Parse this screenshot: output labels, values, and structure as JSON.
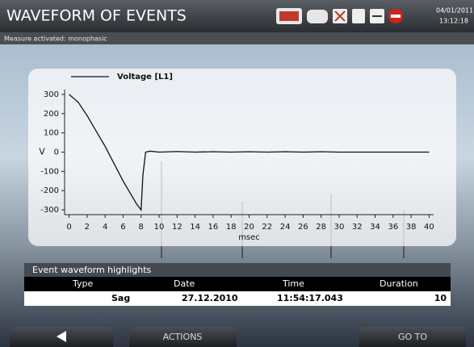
{
  "header": {
    "title": "WAVEFORM OF EVENTS",
    "date": "04/01/2011",
    "time": "13:12:18"
  },
  "status": "Measure activated: monophasic",
  "chart_data": {
    "type": "line",
    "x": [
      0,
      1,
      2,
      3,
      4,
      5,
      6,
      7,
      7.5,
      8,
      8.2,
      8.5,
      9,
      10,
      12,
      14,
      16,
      18,
      20,
      22,
      24,
      26,
      28,
      30,
      32,
      34,
      36,
      38,
      40
    ],
    "series": [
      {
        "name": "Voltage [L1]",
        "color": "#111111",
        "values": [
          300,
          260,
          190,
          110,
          30,
          -60,
          -150,
          -230,
          -270,
          -300,
          -120,
          0,
          5,
          0,
          3,
          0,
          2,
          0,
          2,
          0,
          2,
          0,
          2,
          0,
          0,
          0,
          0,
          0,
          0
        ]
      }
    ],
    "xlabel": "msec",
    "ylabel": "V",
    "xlim": [
      -0.5,
      40.5
    ],
    "ylim": [
      -325,
      325
    ],
    "xticks": [
      0,
      2,
      4,
      6,
      8,
      10,
      12,
      14,
      16,
      18,
      20,
      22,
      24,
      26,
      28,
      30,
      32,
      34,
      36,
      38,
      40
    ],
    "yticks": [
      -300,
      -200,
      -100,
      0,
      100,
      200,
      300
    ]
  },
  "table": {
    "title": "Event waveform highlights",
    "columns": [
      "Type",
      "Date",
      "Time",
      "Duration"
    ],
    "rows": [
      [
        "Sag",
        "27.12.2010",
        "11:54:17.043",
        10
      ]
    ]
  },
  "buttons": [
    "ACTIONS",
    "GO TO"
  ]
}
